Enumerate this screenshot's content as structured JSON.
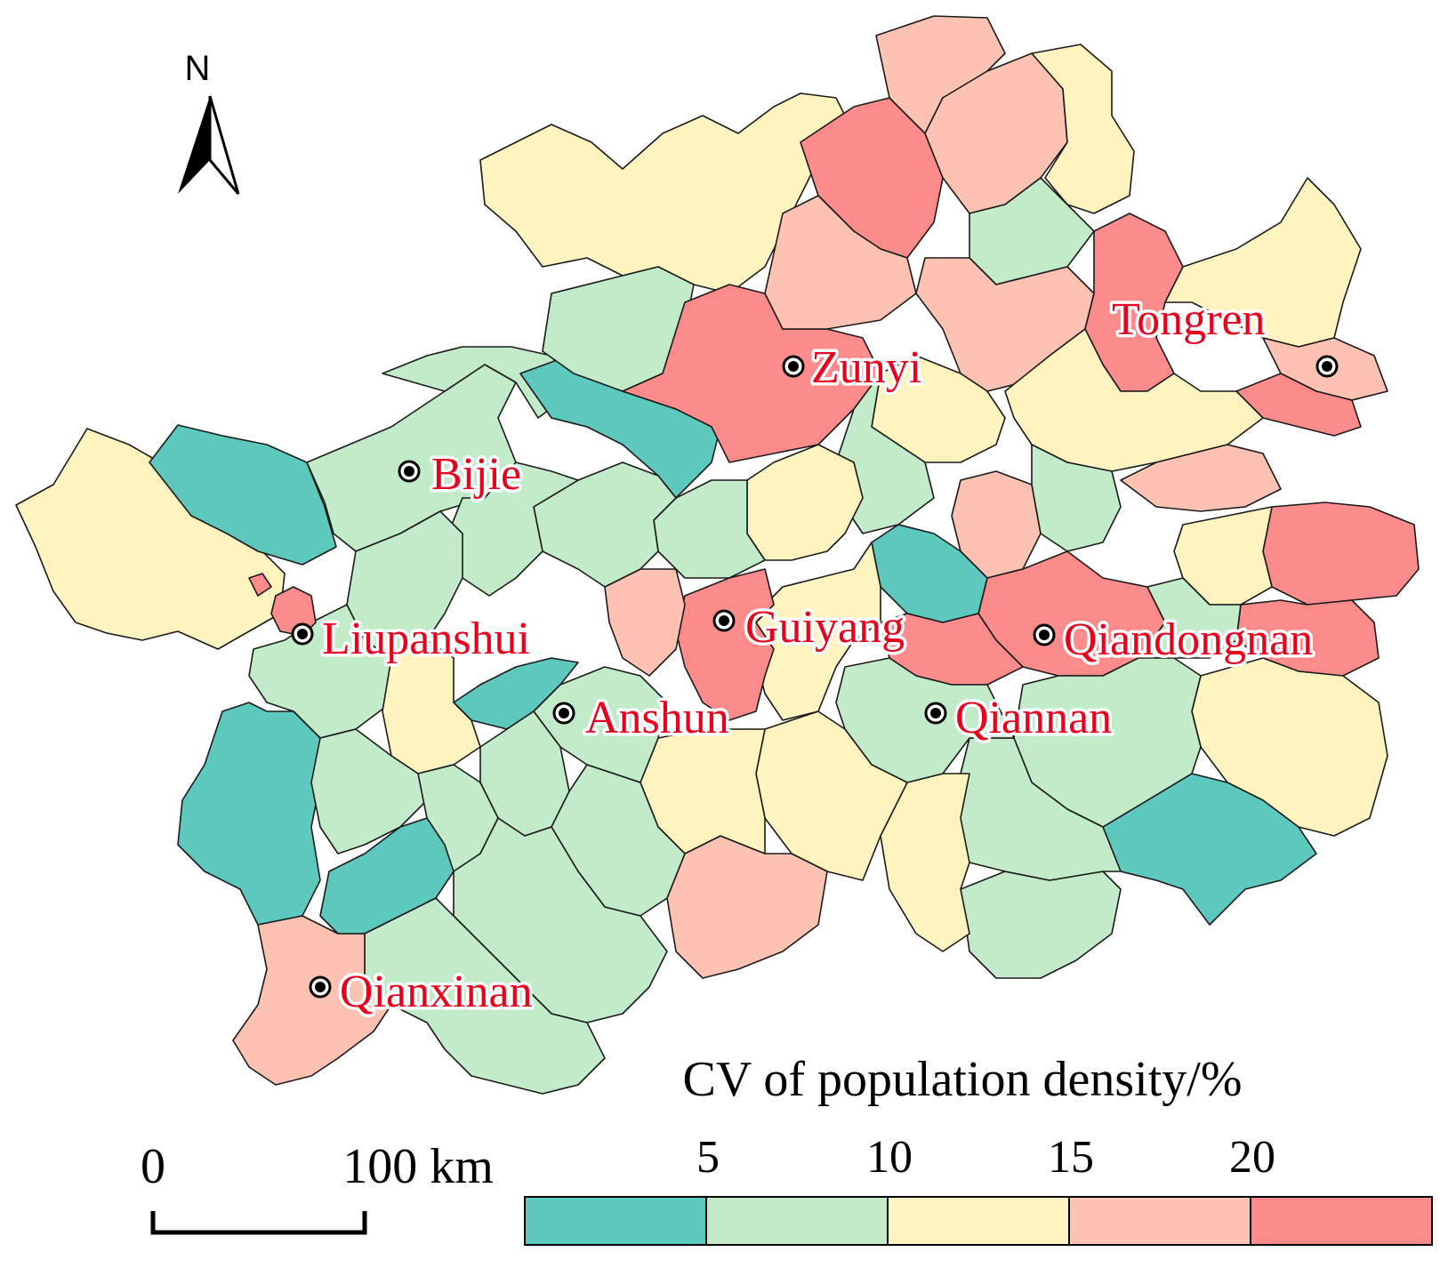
{
  "colors": {
    "class1": "#5cc8be",
    "class2": "#c2ebc9",
    "class3": "#fff4c0",
    "class4": "#fdc2b1",
    "class5": "#fc8b8b",
    "city_label": "#e8001c",
    "boundary": "#1a1a1a"
  },
  "cities": [
    {
      "name": "Zunyi"
    },
    {
      "name": "Tongren"
    },
    {
      "name": "Bijie"
    },
    {
      "name": "Guiyang"
    },
    {
      "name": "Liupanshui"
    },
    {
      "name": "Qiandongnan"
    },
    {
      "name": "Anshun"
    },
    {
      "name": "Qiannan"
    },
    {
      "name": "Qianxinan"
    }
  ],
  "legend": {
    "title": "CV of population density/%",
    "ticks": [
      "5",
      "10",
      "15",
      "20"
    ],
    "classes": 5
  },
  "scale_bar": {
    "start_label": "0",
    "end_label": "100 km"
  },
  "north_arrow": {
    "label": "N",
    "icon": "north-arrow-icon"
  }
}
